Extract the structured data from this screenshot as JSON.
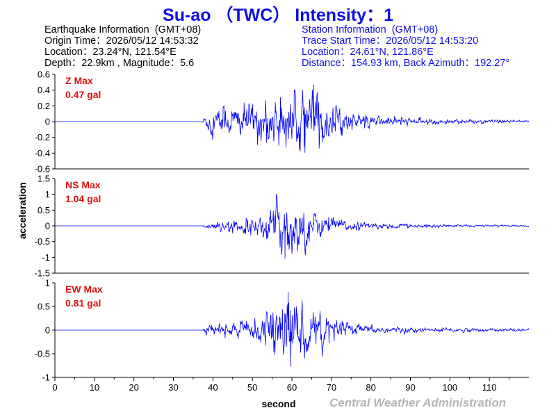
{
  "title": "Su-ao （TWC） Intensity：1",
  "earthquake_info": {
    "heading": "Earthquake Information  (GMT+08)",
    "origin_time": "Origin Time：2026/05/12 14:53:32",
    "location": "Location：23.24°N, 121.54°E",
    "depth_magnitude": "Depth：22.9km , Magnitude：5.6"
  },
  "station_info": {
    "heading": "Station Information  (GMT+08)",
    "trace_start": "Trace Start Time：2026/05/12 14:53:20",
    "location": "Location：24.61°N, 121.86°E",
    "distance": "Distance：154.93 km, Back Azimuth：192.27°"
  },
  "credit": "Central Weather Administration",
  "colors": {
    "title": "#1010e0",
    "trace": "#0000ff",
    "max_label": "#e01010",
    "credit": "#b4b4b4"
  },
  "chart_data": {
    "type": "line",
    "xlabel": "second",
    "ylabel": "acceleration",
    "xlim": [
      0,
      120
    ],
    "x_ticks": [
      0,
      10,
      20,
      30,
      40,
      50,
      60,
      70,
      80,
      90,
      100,
      110
    ],
    "series": [
      {
        "name": "Z",
        "max_label": "Z Max",
        "max_value": "0.47 gal",
        "ylim": [
          -0.6,
          0.6
        ],
        "y_ticks": [
          0.6,
          0.4,
          0.2,
          0,
          -0.2,
          -0.4,
          -0.6
        ],
        "y_tick_labels": [
          "0.6",
          "0.4",
          "0.2",
          "0",
          "-0.2",
          "-0.4",
          "-0.6"
        ],
        "onset_s": 37.5,
        "peak_time_s": 65.5,
        "peak": 0.47,
        "envelope": [
          [
            0,
            0
          ],
          [
            37,
            0
          ],
          [
            38,
            0.08
          ],
          [
            40,
            0.12
          ],
          [
            45,
            0.14
          ],
          [
            50,
            0.18
          ],
          [
            55,
            0.2
          ],
          [
            60,
            0.25
          ],
          [
            65,
            0.3
          ],
          [
            70,
            0.15
          ],
          [
            75,
            0.08
          ],
          [
            80,
            0.05
          ],
          [
            90,
            0.03
          ],
          [
            100,
            0.02
          ],
          [
            120,
            0.012
          ]
        ]
      },
      {
        "name": "NS",
        "max_label": "NS Max",
        "max_value": "1.04 gal",
        "ylim": [
          -1.5,
          1.5
        ],
        "y_ticks": [
          1.5,
          1,
          0.5,
          0,
          -0.5,
          -1,
          -1.5
        ],
        "y_tick_labels": [
          "1.5",
          "1",
          "0.5",
          "0",
          "-0.5",
          "-1",
          "-1.5"
        ],
        "onset_s": 37.5,
        "peak_time_s": 58.2,
        "peak": -1.04,
        "envelope": [
          [
            0,
            0
          ],
          [
            37,
            0
          ],
          [
            38,
            0.06
          ],
          [
            42,
            0.1
          ],
          [
            47,
            0.14
          ],
          [
            52,
            0.22
          ],
          [
            55,
            0.4
          ],
          [
            58,
            0.7
          ],
          [
            62,
            0.55
          ],
          [
            66,
            0.3
          ],
          [
            70,
            0.18
          ],
          [
            75,
            0.1
          ],
          [
            80,
            0.07
          ],
          [
            90,
            0.04
          ],
          [
            100,
            0.03
          ],
          [
            120,
            0.02
          ]
        ]
      },
      {
        "name": "EW",
        "max_label": "EW Max",
        "max_value": "0.81 gal",
        "ylim": [
          -1,
          1
        ],
        "y_ticks": [
          1,
          0.5,
          0,
          -0.5,
          -1
        ],
        "y_tick_labels": [
          "1",
          "0.5",
          "0",
          "-0.5",
          "-1"
        ],
        "onset_s": 37.5,
        "peak_time_s": 59.0,
        "peak": 0.81,
        "envelope": [
          [
            0,
            0
          ],
          [
            37,
            0
          ],
          [
            38,
            0.06
          ],
          [
            42,
            0.09
          ],
          [
            47,
            0.12
          ],
          [
            52,
            0.18
          ],
          [
            55,
            0.3
          ],
          [
            58,
            0.55
          ],
          [
            61,
            0.55
          ],
          [
            65,
            0.35
          ],
          [
            70,
            0.18
          ],
          [
            75,
            0.1
          ],
          [
            80,
            0.06
          ],
          [
            90,
            0.04
          ],
          [
            100,
            0.03
          ],
          [
            120,
            0.02
          ]
        ]
      }
    ]
  }
}
